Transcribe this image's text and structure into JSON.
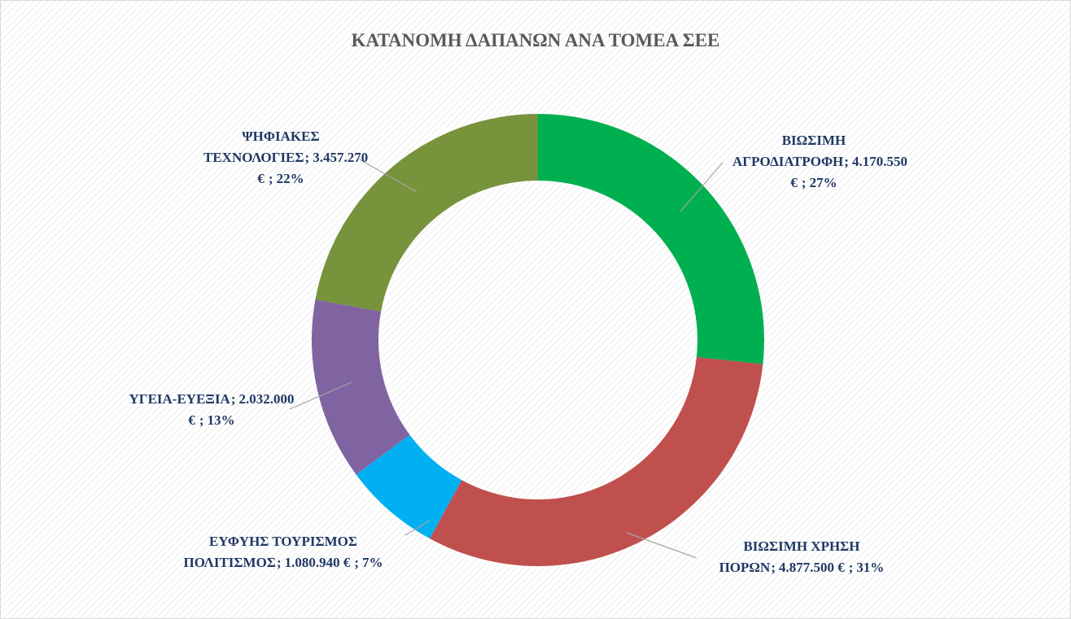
{
  "chart_data": {
    "type": "donut",
    "title": "ΚΑΤΑΝΟΜΗ ΔΑΠΑΝΩΝ ΑΝΑ ΤΟΜΕΑ ΣΕΕ",
    "categories": [
      "ΒΙΩΣΙΜΗ ΑΓΡΟΔΙΑΤΡΟΦΗ",
      "ΒΙΩΣΙΜΗ ΧΡΗΣΗ ΠΟΡΩΝ",
      "ΕΥΦΥΗΣ ΤΟΥΡΙΣΜΟΣ ΠΟΛΙΤΙΣΜΟΣ",
      "ΥΓΕΙΑ-ΕΥΕΞΙΑ",
      "ΨΗΦΙΑΚΕΣ ΤΕΧΝΟΛΟΓΙΕΣ"
    ],
    "values": [
      4170550,
      4877500,
      1080940,
      2032000,
      3457270
    ],
    "value_labels": [
      "4.170.550 €",
      "4.877.500 €",
      "1.080.940 €",
      "2.032.000 €",
      "3.457.270 €"
    ],
    "percent_labels": [
      "27%",
      "31%",
      "7%",
      "13%",
      "22%"
    ],
    "label_separator": ";",
    "colors": [
      "#00b050",
      "#c0504d",
      "#00b0f0",
      "#8064a2",
      "#77933c"
    ]
  }
}
